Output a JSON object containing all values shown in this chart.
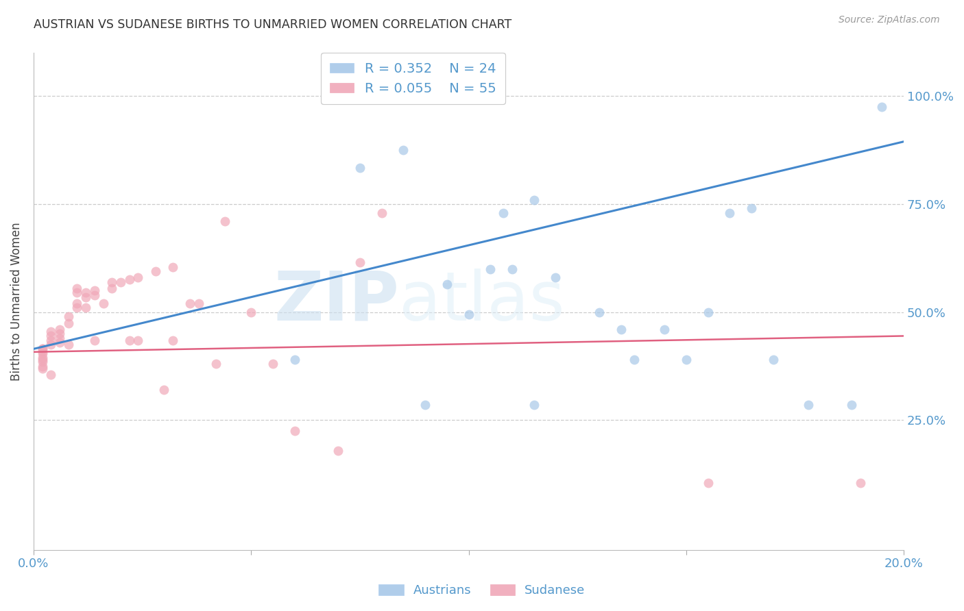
{
  "title": "AUSTRIAN VS SUDANESE BIRTHS TO UNMARRIED WOMEN CORRELATION CHART",
  "source": "Source: ZipAtlas.com",
  "ylabel": "Births to Unmarried Women",
  "xlim": [
    0.0,
    0.2
  ],
  "ylim": [
    -0.05,
    1.1
  ],
  "yticks": [
    0.25,
    0.5,
    0.75,
    1.0
  ],
  "ytick_labels": [
    "25.0%",
    "50.0%",
    "75.0%",
    "100.0%"
  ],
  "xticks": [
    0.0,
    0.05,
    0.1,
    0.15,
    0.2
  ],
  "xtick_labels": [
    "0.0%",
    "",
    "",
    "",
    "20.0%"
  ],
  "legend_r1": "R = 0.352",
  "legend_n1": "N = 24",
  "legend_r2": "R = 0.055",
  "legend_n2": "N = 55",
  "blue_color": "#a8c8e8",
  "pink_color": "#f0a8b8",
  "line_blue": "#4488cc",
  "line_pink": "#e06080",
  "tick_color": "#5599cc",
  "watermark_zip": "ZIP",
  "watermark_atlas": "atlas",
  "austrians_x": [
    0.075,
    0.085,
    0.095,
    0.1,
    0.105,
    0.108,
    0.11,
    0.115,
    0.12,
    0.13,
    0.135,
    0.138,
    0.145,
    0.15,
    0.155,
    0.16,
    0.165,
    0.17,
    0.178,
    0.188,
    0.06,
    0.09,
    0.115,
    0.195
  ],
  "austrians_y": [
    0.835,
    0.875,
    0.565,
    0.495,
    0.6,
    0.73,
    0.6,
    0.76,
    0.58,
    0.5,
    0.46,
    0.39,
    0.46,
    0.39,
    0.5,
    0.73,
    0.74,
    0.39,
    0.285,
    0.285,
    0.39,
    0.285,
    0.285,
    0.975
  ],
  "sudanese_x": [
    0.002,
    0.002,
    0.002,
    0.002,
    0.002,
    0.002,
    0.002,
    0.002,
    0.002,
    0.004,
    0.004,
    0.004,
    0.004,
    0.004,
    0.006,
    0.006,
    0.006,
    0.006,
    0.008,
    0.008,
    0.008,
    0.01,
    0.01,
    0.01,
    0.01,
    0.012,
    0.012,
    0.012,
    0.014,
    0.014,
    0.014,
    0.016,
    0.018,
    0.018,
    0.02,
    0.022,
    0.022,
    0.024,
    0.024,
    0.028,
    0.03,
    0.032,
    0.032,
    0.036,
    0.038,
    0.042,
    0.044,
    0.05,
    0.055,
    0.06,
    0.07,
    0.075,
    0.08,
    0.19,
    0.155
  ],
  "sudanese_y": [
    0.415,
    0.415,
    0.41,
    0.405,
    0.395,
    0.39,
    0.385,
    0.375,
    0.37,
    0.455,
    0.445,
    0.435,
    0.425,
    0.355,
    0.46,
    0.45,
    0.44,
    0.43,
    0.49,
    0.475,
    0.425,
    0.555,
    0.545,
    0.52,
    0.51,
    0.545,
    0.535,
    0.51,
    0.55,
    0.54,
    0.435,
    0.52,
    0.57,
    0.555,
    0.57,
    0.575,
    0.435,
    0.58,
    0.435,
    0.595,
    0.32,
    0.605,
    0.435,
    0.52,
    0.52,
    0.38,
    0.71,
    0.5,
    0.38,
    0.225,
    0.18,
    0.615,
    0.73,
    0.105,
    0.105
  ],
  "blue_trendline_x": [
    0.0,
    0.2
  ],
  "blue_trendline_y": [
    0.415,
    0.895
  ],
  "pink_trendline_x": [
    0.0,
    0.2
  ],
  "pink_trendline_y": [
    0.408,
    0.445
  ],
  "marker_size": 100,
  "background_color": "#ffffff",
  "grid_color": "#cccccc",
  "grid_style": "--"
}
